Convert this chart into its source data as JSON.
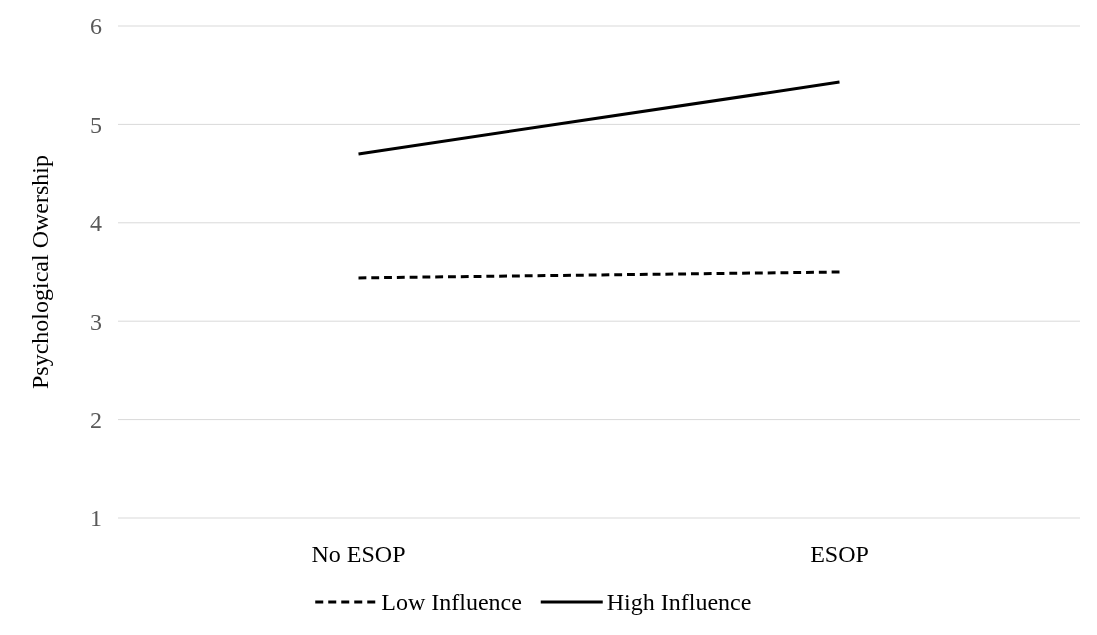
{
  "chart_data": {
    "type": "line",
    "ylabel": "Psychological Owership",
    "categories": [
      "No ESOP",
      "ESOP"
    ],
    "series": [
      {
        "name": "Low Influence",
        "color": "#000000",
        "values": [
          3.44,
          3.5
        ],
        "line_style": "dashed"
      },
      {
        "name": "High Influence",
        "color": "#000000",
        "values": [
          4.7,
          5.43
        ],
        "line_style": "solid"
      }
    ],
    "ylim": [
      1,
      6
    ],
    "yticks": [
      1,
      2,
      3,
      4,
      5,
      6
    ],
    "grid": "y",
    "legend": "bottom"
  }
}
